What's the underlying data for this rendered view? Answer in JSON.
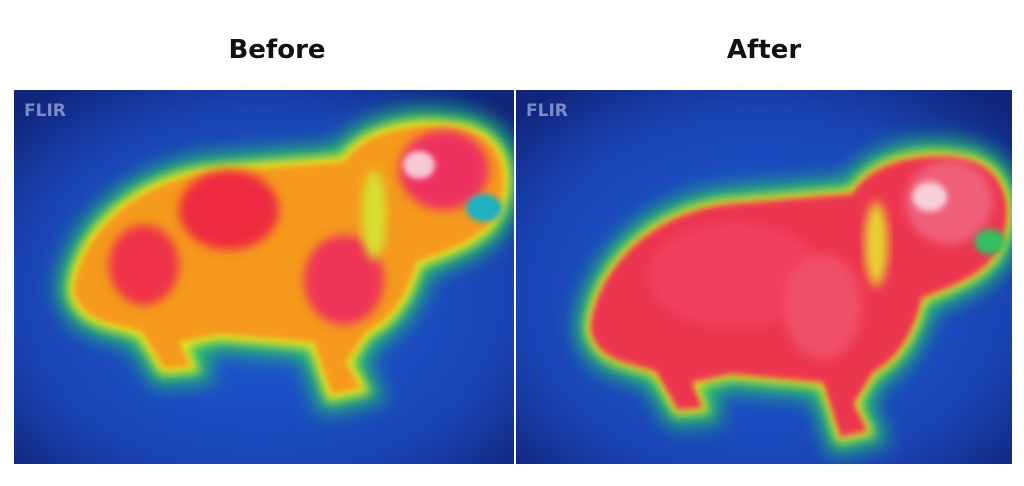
{
  "panels": [
    {
      "title": "Before",
      "watermark": "FLIR"
    },
    {
      "title": "After",
      "watermark": "FLIR"
    }
  ]
}
